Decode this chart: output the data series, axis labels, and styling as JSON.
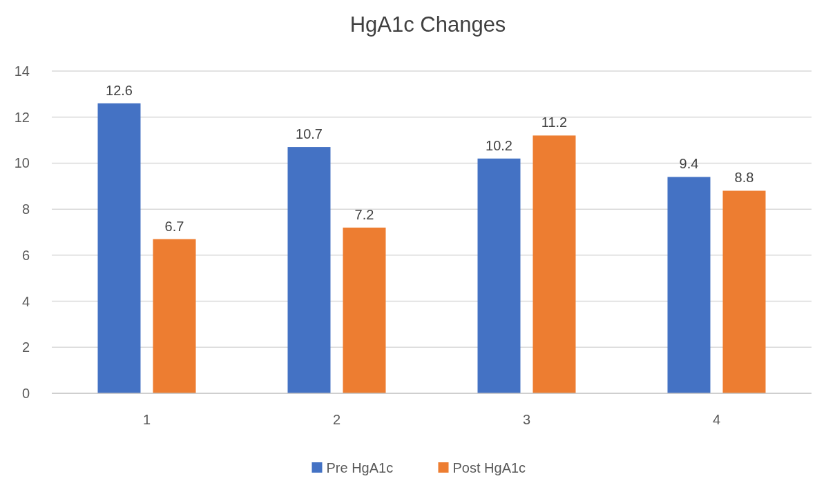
{
  "chart_data": {
    "type": "bar",
    "title": "HgA1c Changes",
    "categories": [
      "1",
      "2",
      "3",
      "4"
    ],
    "series": [
      {
        "name": "Pre HgA1c",
        "color": "#4472c4",
        "values": [
          12.6,
          10.7,
          10.2,
          9.4
        ]
      },
      {
        "name": "Post HgA1c",
        "color": "#ed7d31",
        "values": [
          6.7,
          7.2,
          11.2,
          8.8
        ]
      }
    ],
    "ylim": [
      0,
      14
    ],
    "yticks": [
      0,
      2,
      4,
      6,
      8,
      10,
      12,
      14
    ],
    "grid": "y",
    "legend": "bottom",
    "data_labels": true
  }
}
